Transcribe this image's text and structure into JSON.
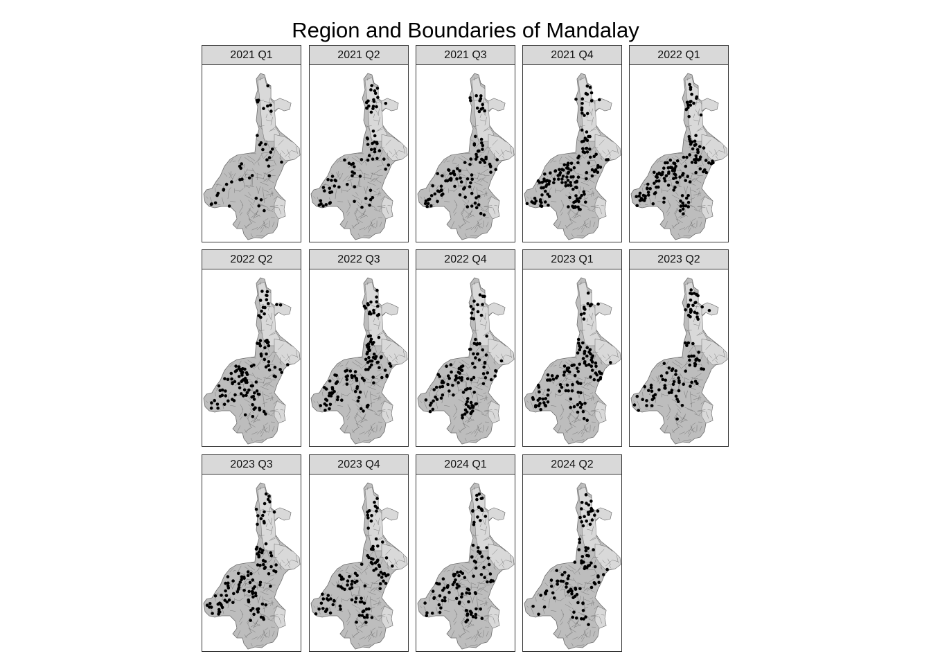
{
  "title": "Region and Boundaries of Mandalay",
  "colors": {
    "region_fill": "#d9d9d9",
    "boundary": "#6e6e6e",
    "point": "#000000",
    "strip_fill": "#d9d9d9",
    "panel_border": "#333333"
  },
  "facets": [
    {
      "label": "2021 Q1",
      "density": 0.15
    },
    {
      "label": "2021 Q2",
      "density": 0.4
    },
    {
      "label": "2021 Q3",
      "density": 0.55
    },
    {
      "label": "2021 Q4",
      "density": 0.9
    },
    {
      "label": "2022 Q1",
      "density": 0.85
    },
    {
      "label": "2022 Q2",
      "density": 0.7
    },
    {
      "label": "2022 Q3",
      "density": 0.65
    },
    {
      "label": "2022 Q4",
      "density": 0.65
    },
    {
      "label": "2023 Q1",
      "density": 0.7
    },
    {
      "label": "2023 Q2",
      "density": 0.55
    },
    {
      "label": "2023 Q3",
      "density": 0.65
    },
    {
      "label": "2023 Q4",
      "density": 0.6
    },
    {
      "label": "2024 Q1",
      "density": 0.6
    },
    {
      "label": "2024 Q2",
      "density": 0.55
    }
  ]
}
